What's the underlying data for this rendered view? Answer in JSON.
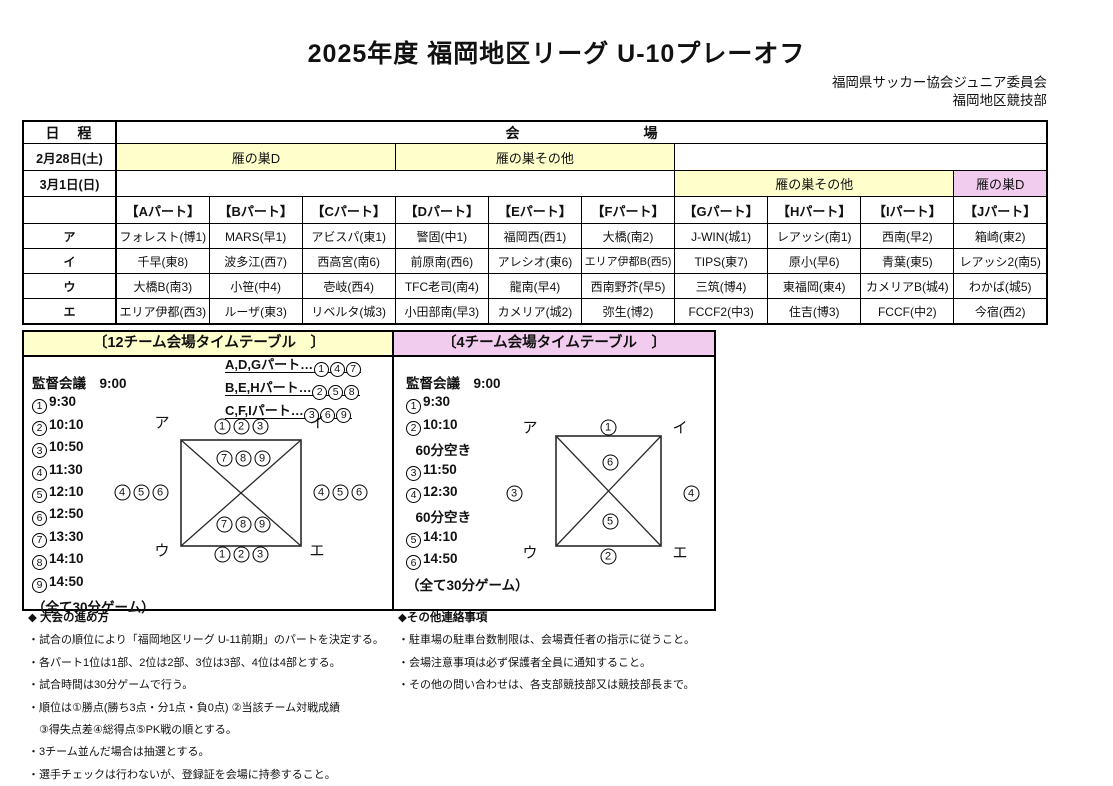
{
  "page": {
    "title": "2025年度 福岡地区リーグ U-10プレーオフ",
    "org_line1": "福岡県サッカー協会ジュニア委員会",
    "org_line2": "福岡地区競技部"
  },
  "colors": {
    "accent_yellow": "#FFFFCC",
    "accent_pink": "#F2CCEF"
  },
  "sched": {
    "date_header": "日　程",
    "venue_header": [
      "会",
      "場"
    ],
    "rows": [
      {
        "date": "2月28日(土)",
        "venues": [
          {
            "name": "雁の巣D"
          },
          {
            "name": "雁の巣その他"
          }
        ]
      },
      {
        "date": "3月1日(日)",
        "venues": [
          {
            "name": "雁の巣その他"
          },
          {
            "name": "雁の巣D"
          }
        ]
      }
    ]
  },
  "parts": {
    "headers": [
      "【Aパート】",
      "【Bパート】",
      "【Cパート】",
      "【Dパート】",
      "【Eパート】",
      "【Fパート】",
      "【Gパート】",
      "【Hパート】",
      "【Iパート】",
      "【Jパート】"
    ],
    "row_labels": [
      "ア",
      "イ",
      "ウ",
      "エ"
    ],
    "rows": [
      [
        "フォレスト(博1)",
        "MARS(早1)",
        "アビスパ(東1)",
        "警固(中1)",
        "福岡西(西1)",
        "大橋(南2)",
        "J-WIN(城1)",
        "レアッシ(南1)",
        "西南(早2)",
        "箱崎(東2)"
      ],
      [
        "千早(東8)",
        "波多江(西7)",
        "西高宮(南6)",
        "前原南(西6)",
        "アレシオ(東6)",
        "エリア伊都B(西5)",
        "TIPS(東7)",
        "原小(早6)",
        "青葉(東5)",
        "レアッシ2(南5)"
      ],
      [
        "大橋B(南3)",
        "小笹(中4)",
        "壱岐(西4)",
        "TFC老司(南4)",
        "龍南(早4)",
        "西南野芥(早5)",
        "三筑(博4)",
        "東福岡(東4)",
        "カメリアB(城4)",
        "わかば(城5)"
      ],
      [
        "エリア伊都(西3)",
        "ルーザ(東3)",
        "リベルタ(城3)",
        "小田部南(早3)",
        "カメリア(城2)",
        "弥生(博2)",
        "FCCF2(中3)",
        "住吉(博3)",
        "FCCF(中2)",
        "今宿(西2)"
      ]
    ]
  },
  "tt12": {
    "title": "〔12チーム会場タイムテーブル　〕",
    "groups": [
      {
        "label": "A,D,Gパート…",
        "nums": [
          "1",
          "4",
          "7"
        ]
      },
      {
        "label": "B,E,Hパート…",
        "nums": [
          "2",
          "5",
          "8"
        ]
      },
      {
        "label": "C,F,Iパート…",
        "nums": [
          "3",
          "6",
          "9"
        ]
      }
    ],
    "meeting": "監督会議　9:00",
    "slots": [
      {
        "n": "1",
        "t": "9:30"
      },
      {
        "n": "2",
        "t": "10:10"
      },
      {
        "n": "3",
        "t": "10:50"
      },
      {
        "n": "4",
        "t": "11:30"
      },
      {
        "n": "5",
        "t": "12:10"
      },
      {
        "n": "6",
        "t": "12:50"
      },
      {
        "n": "7",
        "t": "13:30"
      },
      {
        "n": "8",
        "t": "14:10"
      },
      {
        "n": "9",
        "t": "14:50"
      }
    ],
    "footer": "（全て30分ゲーム）",
    "diagram": {
      "tl": "ア",
      "tr": "イ",
      "bl": "ウ",
      "br": "エ",
      "top_out": [
        "1",
        "2",
        "3"
      ],
      "top_in": [
        "7",
        "8",
        "9"
      ],
      "left": [
        "4",
        "5",
        "6"
      ],
      "right": [
        "4",
        "5",
        "6"
      ],
      "bottom_in": [
        "7",
        "8",
        "9"
      ],
      "bottom_out": [
        "1",
        "2",
        "3"
      ]
    }
  },
  "tt4": {
    "title": "〔4チーム会場タイムテーブル　〕",
    "meeting": "監督会議　9:00",
    "slots": [
      {
        "n": "1",
        "t": "9:30"
      },
      {
        "n": "2",
        "t": "10:10"
      },
      {
        "n": "",
        "t": "  60分空き"
      },
      {
        "n": "3",
        "t": "11:50"
      },
      {
        "n": "4",
        "t": "12:30"
      },
      {
        "n": "",
        "t": "  60分空き"
      },
      {
        "n": "5",
        "t": "14:10"
      },
      {
        "n": "6",
        "t": "14:50"
      }
    ],
    "footer": "（全て30分ゲーム）",
    "diagram": {
      "tl": "ア",
      "tr": "イ",
      "bl": "ウ",
      "br": "エ",
      "top_out": [
        "1"
      ],
      "top_in": [
        "6"
      ],
      "left": [
        "3"
      ],
      "right": [
        "4"
      ],
      "bottom_in": [
        "5"
      ],
      "bottom_out": [
        "2"
      ]
    }
  },
  "notesL": {
    "heading": "◆ 大会の進め方",
    "items": [
      "・試合の順位により「福岡地区リーグ U-11前期」のパートを決定する。",
      "・各パート1位は1部、2位は2部、3位は3部、4位は4部とする。",
      "・試合時間は30分ゲームで行う。",
      "・順位は①勝点(勝ち3点・分1点・負0点) ②当該チーム対戦成績",
      "　③得失点差④総得点⑤PK戦の順とする。",
      "・3チーム並んだ場合は抽選とする。",
      "・選手チェックは行わないが、登録証を会場に持参すること。"
    ]
  },
  "notesR": {
    "heading": "◆その他連絡事項",
    "items": [
      "・駐車場の駐車台数制限は、会場責任者の指示に従うこと。",
      "・会場注意事項は必ず保護者全員に通知すること。",
      "・その他の問い合わせは、各支部競技部又は競技部長まで。"
    ]
  }
}
